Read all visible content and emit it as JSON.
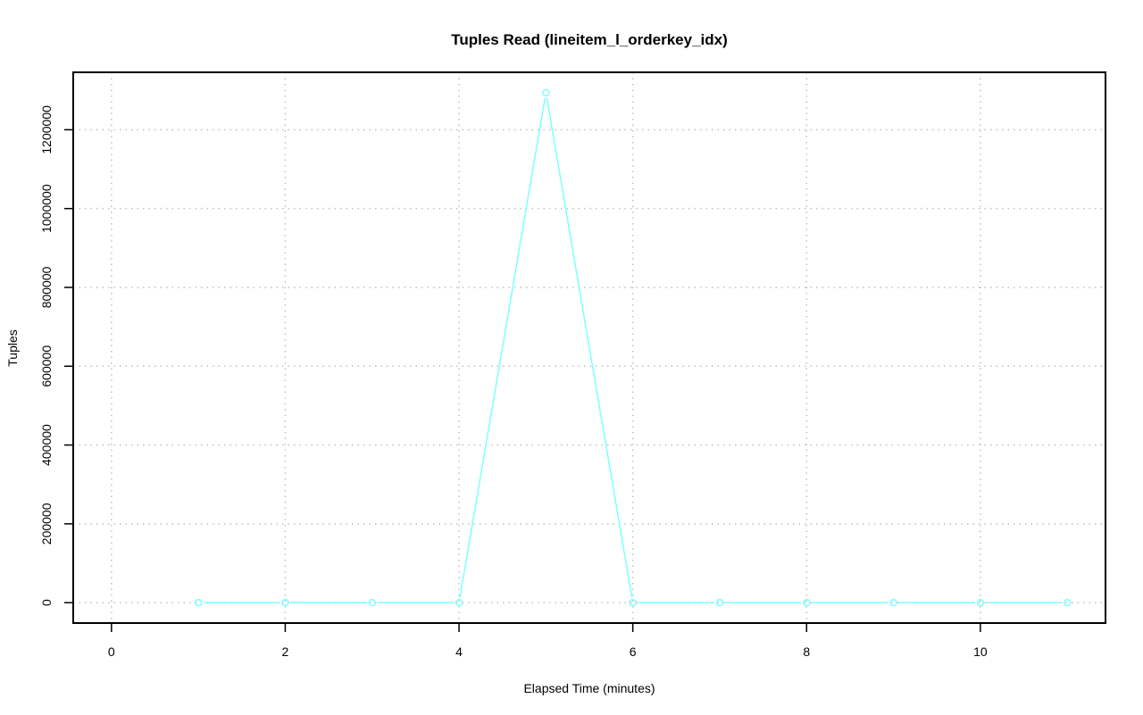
{
  "chart_data": {
    "type": "line",
    "title": "Tuples Read (lineitem_l_orderkey_idx)",
    "xlabel": "Elapsed Time (minutes)",
    "ylabel": "Tuples",
    "xlim": [
      0,
      11
    ],
    "ylim": [
      0,
      1294000
    ],
    "x_ticks": [
      0,
      2,
      4,
      6,
      8,
      10
    ],
    "y_ticks": [
      0,
      200000,
      400000,
      600000,
      800000,
      1000000,
      1200000
    ],
    "grid": true,
    "series_color": "#7FFFFF",
    "series": [
      {
        "x": [
          1,
          2,
          3,
          4,
          5,
          6,
          7,
          8,
          9,
          10,
          11
        ],
        "values": [
          0,
          0,
          0,
          0,
          1294000,
          0,
          0,
          0,
          0,
          0,
          0
        ]
      }
    ]
  }
}
